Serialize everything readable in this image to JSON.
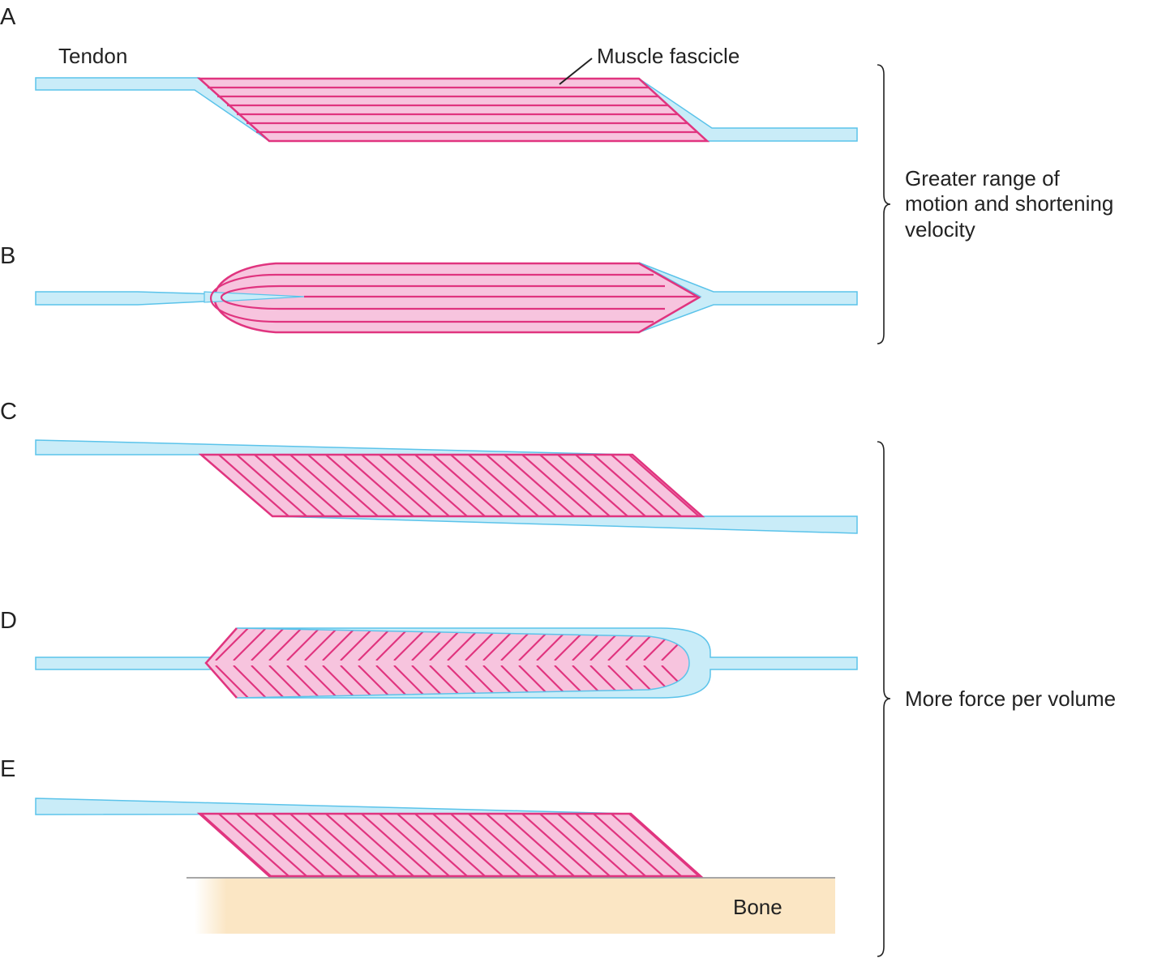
{
  "panels": {
    "a": {
      "letter": "A"
    },
    "b": {
      "letter": "B"
    },
    "c": {
      "letter": "C"
    },
    "d": {
      "letter": "D"
    },
    "e": {
      "letter": "E"
    }
  },
  "labels": {
    "tendon": "Tendon",
    "muscle_fascicle": "Muscle fascicle",
    "bone": "Bone"
  },
  "brackets": {
    "top": {
      "lines": [
        "Greater range of",
        "motion and shortening",
        "velocity"
      ]
    },
    "bottom": {
      "lines": [
        "More force per volume"
      ]
    }
  },
  "colors": {
    "tendon_fill": "#c9ecf8",
    "tendon_stroke": "#5bc3ea",
    "muscle_fill": "#f7c4de",
    "muscle_stroke": "#e0347f",
    "bone_fill": "#fbe6c4",
    "text": "#222222"
  }
}
